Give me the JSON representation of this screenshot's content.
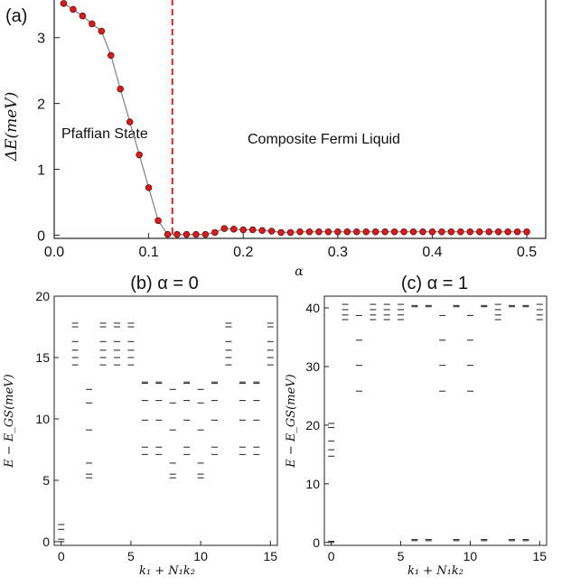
{
  "panel_a": {
    "label": "(a)",
    "ylabel": "ΔE(meV)",
    "xlabel": "α",
    "annotation_left": "Pfaffian State",
    "annotation_right": "Composite Fermi Liquid",
    "x_ticks": [
      "0.0",
      "0.1",
      "0.2",
      "0.3",
      "0.4",
      "0.5"
    ],
    "y_ticks": [
      "0",
      "1",
      "2",
      "3"
    ],
    "colors": {
      "marker": "#d81b1b",
      "line": "#808080",
      "transition": "#e02020"
    }
  },
  "panel_b": {
    "title": "(b)  α = 0",
    "xlabel": "k₁ + N₁k₂",
    "ylabel": "E − E_GS(meV)",
    "x_ticks": [
      "0",
      "5",
      "10",
      "15"
    ],
    "y_ticks": [
      "0",
      "5",
      "10",
      "15",
      "20"
    ]
  },
  "panel_c": {
    "title": "(c)  α = 1",
    "xlabel": "k₁ + N₁k₂",
    "ylabel": "E − E_GS(meV)",
    "x_ticks": [
      "0",
      "5",
      "10",
      "15"
    ],
    "y_ticks": [
      "0",
      "10",
      "20",
      "30",
      "40"
    ]
  },
  "chart_data": [
    {
      "type": "line",
      "title": "(a)",
      "xlabel": "α",
      "ylabel": "ΔE(meV)",
      "xlim": [
        0.0,
        0.52
      ],
      "ylim": [
        -0.05,
        3.6
      ],
      "grid": false,
      "x": [
        0.01,
        0.02,
        0.03,
        0.04,
        0.05,
        0.06,
        0.07,
        0.08,
        0.09,
        0.1,
        0.11,
        0.12,
        0.13,
        0.14,
        0.15,
        0.16,
        0.17,
        0.18,
        0.19,
        0.2,
        0.21,
        0.22,
        0.23,
        0.24,
        0.25,
        0.26,
        0.27,
        0.28,
        0.29,
        0.3,
        0.31,
        0.32,
        0.33,
        0.34,
        0.35,
        0.36,
        0.37,
        0.38,
        0.39,
        0.4,
        0.41,
        0.42,
        0.43,
        0.44,
        0.45,
        0.46,
        0.47,
        0.48,
        0.49,
        0.5
      ],
      "y": [
        3.52,
        3.43,
        3.33,
        3.21,
        3.1,
        2.73,
        2.22,
        1.72,
        1.22,
        0.72,
        0.22,
        0.01,
        0.01,
        0.01,
        0.01,
        0.01,
        0.04,
        0.1,
        0.09,
        0.08,
        0.08,
        0.07,
        0.06,
        0.04,
        0.04,
        0.05,
        0.05,
        0.05,
        0.05,
        0.05,
        0.05,
        0.05,
        0.05,
        0.05,
        0.05,
        0.05,
        0.05,
        0.05,
        0.05,
        0.05,
        0.05,
        0.05,
        0.05,
        0.05,
        0.05,
        0.05,
        0.05,
        0.05,
        0.05,
        0.05
      ],
      "transition_x": 0.125,
      "annotations": [
        "Pfaffian State",
        "Composite Fermi Liquid"
      ]
    },
    {
      "type": "scatter",
      "marker": "horizontal-dash",
      "title": "(b)  α = 0",
      "xlabel": "k₁ + N₁k₂",
      "ylabel": "E − E_GS(meV)",
      "xlim": [
        -0.5,
        15.5
      ],
      "ylim": [
        -0.3,
        20
      ],
      "points": [
        [
          0,
          0.0
        ],
        [
          0,
          0.2
        ],
        [
          0,
          1.0
        ],
        [
          0,
          1.4
        ],
        [
          1,
          14.4
        ],
        [
          1,
          15.0
        ],
        [
          1,
          15.6
        ],
        [
          1,
          16.3
        ],
        [
          1,
          17.5
        ],
        [
          1,
          17.8
        ],
        [
          2,
          5.2
        ],
        [
          2,
          5.5
        ],
        [
          2,
          6.4
        ],
        [
          2,
          9.1
        ],
        [
          2,
          11.3
        ],
        [
          2,
          12.4
        ],
        [
          3,
          14.4
        ],
        [
          3,
          15.0
        ],
        [
          3,
          15.6
        ],
        [
          3,
          16.3
        ],
        [
          3,
          17.5
        ],
        [
          3,
          17.8
        ],
        [
          4,
          14.4
        ],
        [
          4,
          15.0
        ],
        [
          4,
          15.6
        ],
        [
          4,
          16.3
        ],
        [
          4,
          17.5
        ],
        [
          4,
          17.8
        ],
        [
          5,
          14.4
        ],
        [
          5,
          15.0
        ],
        [
          5,
          15.6
        ],
        [
          5,
          16.3
        ],
        [
          5,
          17.5
        ],
        [
          5,
          17.8
        ],
        [
          6,
          7.1
        ],
        [
          6,
          7.7
        ],
        [
          6,
          9.9
        ],
        [
          6,
          11.5
        ],
        [
          6,
          12.9
        ],
        [
          6,
          13.0
        ],
        [
          7,
          7.1
        ],
        [
          7,
          7.7
        ],
        [
          7,
          9.9
        ],
        [
          7,
          11.5
        ],
        [
          7,
          12.9
        ],
        [
          7,
          13.0
        ],
        [
          8,
          5.2
        ],
        [
          8,
          5.5
        ],
        [
          8,
          6.4
        ],
        [
          8,
          9.1
        ],
        [
          8,
          11.3
        ],
        [
          8,
          12.4
        ],
        [
          9,
          7.1
        ],
        [
          9,
          7.7
        ],
        [
          9,
          9.9
        ],
        [
          9,
          11.5
        ],
        [
          9,
          12.9
        ],
        [
          9,
          13.0
        ],
        [
          10,
          5.2
        ],
        [
          10,
          5.5
        ],
        [
          10,
          6.4
        ],
        [
          10,
          9.1
        ],
        [
          10,
          11.3
        ],
        [
          10,
          12.4
        ],
        [
          11,
          7.1
        ],
        [
          11,
          7.7
        ],
        [
          11,
          9.9
        ],
        [
          11,
          11.5
        ],
        [
          11,
          12.9
        ],
        [
          11,
          13.0
        ],
        [
          12,
          14.4
        ],
        [
          12,
          15.0
        ],
        [
          12,
          15.6
        ],
        [
          12,
          16.3
        ],
        [
          12,
          17.5
        ],
        [
          12,
          17.8
        ],
        [
          13,
          7.1
        ],
        [
          13,
          7.7
        ],
        [
          13,
          9.9
        ],
        [
          13,
          11.5
        ],
        [
          13,
          12.9
        ],
        [
          13,
          13.0
        ],
        [
          14,
          7.1
        ],
        [
          14,
          7.7
        ],
        [
          14,
          9.9
        ],
        [
          14,
          11.5
        ],
        [
          14,
          12.9
        ],
        [
          14,
          13.0
        ],
        [
          15,
          14.4
        ],
        [
          15,
          15.0
        ],
        [
          15,
          15.6
        ],
        [
          15,
          16.3
        ],
        [
          15,
          17.5
        ],
        [
          15,
          17.8
        ]
      ]
    },
    {
      "type": "scatter",
      "marker": "horizontal-dash",
      "title": "(c)  α = 1",
      "xlabel": "k₁ + N₁k₂",
      "ylabel": "E − E_GS(meV)",
      "xlim": [
        -0.5,
        15.5
      ],
      "ylim": [
        -0.5,
        42
      ],
      "points": [
        [
          0,
          0.0
        ],
        [
          0,
          0.2
        ],
        [
          0,
          14.7
        ],
        [
          0,
          15.8
        ],
        [
          0,
          17.3
        ],
        [
          0,
          19.6
        ],
        [
          0,
          20.3
        ],
        [
          1,
          38.0
        ],
        [
          1,
          38.8
        ],
        [
          1,
          39.7
        ],
        [
          1,
          40.6
        ],
        [
          2,
          25.8
        ],
        [
          2,
          30.2
        ],
        [
          2,
          34.5
        ],
        [
          2,
          38.7
        ],
        [
          3,
          38.0
        ],
        [
          3,
          38.8
        ],
        [
          3,
          39.7
        ],
        [
          3,
          40.6
        ],
        [
          4,
          38.0
        ],
        [
          4,
          38.8
        ],
        [
          4,
          39.7
        ],
        [
          4,
          40.6
        ],
        [
          5,
          38.0
        ],
        [
          5,
          38.8
        ],
        [
          5,
          39.7
        ],
        [
          5,
          40.6
        ],
        [
          6,
          0.3
        ],
        [
          6,
          0.5
        ],
        [
          6,
          40.2
        ],
        [
          6,
          40.4
        ],
        [
          7,
          0.3
        ],
        [
          7,
          0.5
        ],
        [
          7,
          40.2
        ],
        [
          7,
          40.4
        ],
        [
          8,
          25.8
        ],
        [
          8,
          30.2
        ],
        [
          8,
          34.5
        ],
        [
          8,
          38.7
        ],
        [
          9,
          0.3
        ],
        [
          9,
          0.5
        ],
        [
          9,
          40.2
        ],
        [
          9,
          40.4
        ],
        [
          10,
          25.8
        ],
        [
          10,
          30.2
        ],
        [
          10,
          34.5
        ],
        [
          10,
          38.7
        ],
        [
          11,
          0.3
        ],
        [
          11,
          0.5
        ],
        [
          11,
          40.2
        ],
        [
          11,
          40.4
        ],
        [
          12,
          38.0
        ],
        [
          12,
          38.8
        ],
        [
          12,
          39.7
        ],
        [
          12,
          40.6
        ],
        [
          13,
          0.3
        ],
        [
          13,
          0.5
        ],
        [
          13,
          40.2
        ],
        [
          13,
          40.4
        ],
        [
          14,
          0.3
        ],
        [
          14,
          0.5
        ],
        [
          14,
          40.2
        ],
        [
          14,
          40.4
        ],
        [
          15,
          38.0
        ],
        [
          15,
          38.8
        ],
        [
          15,
          39.7
        ],
        [
          15,
          40.6
        ]
      ]
    }
  ]
}
